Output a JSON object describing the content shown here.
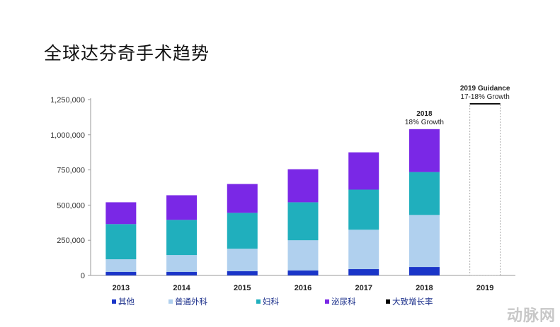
{
  "title": "全球达芬奇手术趋势",
  "watermark": "动脉网",
  "chart_data": {
    "type": "bar",
    "stacked": true,
    "title": "全球达芬奇手术趋势",
    "categories": [
      "2013",
      "2014",
      "2015",
      "2016",
      "2017",
      "2018",
      "2019"
    ],
    "series": [
      {
        "name": "其他",
        "color": "#1a35c8",
        "values": [
          25000,
          25000,
          30000,
          35000,
          45000,
          60000,
          0
        ]
      },
      {
        "name": "普通外科",
        "color": "#b0d0ee",
        "values": [
          90000,
          120000,
          160000,
          215000,
          280000,
          370000,
          0
        ]
      },
      {
        "name": "妇科",
        "color": "#20afbd",
        "values": [
          250000,
          250000,
          255000,
          270000,
          285000,
          305000,
          0
        ]
      },
      {
        "name": "泌尿科",
        "color": "#7a28e6",
        "values": [
          155000,
          175000,
          205000,
          235000,
          265000,
          305000,
          0
        ]
      },
      {
        "name": "大致增长率",
        "color": "#000000",
        "values": [
          0,
          0,
          0,
          0,
          0,
          0,
          0
        ]
      }
    ],
    "ylim": [
      0,
      1250000
    ],
    "yticks": [
      "0",
      "250,000",
      "500,000",
      "750,000",
      "1,000,000",
      "1,250,000"
    ],
    "ytick_values": [
      0,
      250000,
      500000,
      750000,
      1000000,
      1250000
    ],
    "guidance_box": {
      "category": "2019",
      "value": 1220000
    },
    "annotations": [
      {
        "category": "2018",
        "lines": [
          "2018",
          "18% Growth"
        ]
      },
      {
        "category": "2019",
        "lines": [
          "2019 Guidance",
          "17-18% Growth"
        ]
      }
    ],
    "legend_position": "bottom",
    "grid": false
  }
}
